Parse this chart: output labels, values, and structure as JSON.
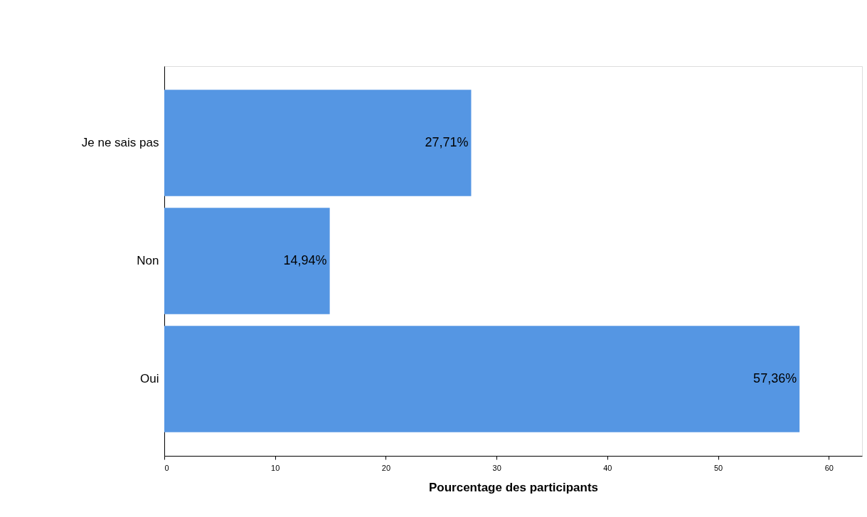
{
  "chart_data": {
    "type": "bar",
    "orientation": "horizontal",
    "xlabel": "Pourcentage des participants",
    "categories": [
      "Je ne sais pas",
      "Non",
      "Oui"
    ],
    "values": [
      27.71,
      14.94,
      57.36
    ],
    "value_labels": [
      "27,71%",
      "14,94%",
      "57,36%"
    ],
    "color": "#5596e3",
    "xlim": [
      0,
      63
    ],
    "xticks": [
      0,
      10,
      20,
      30,
      40,
      50,
      60
    ],
    "grid": false
  }
}
